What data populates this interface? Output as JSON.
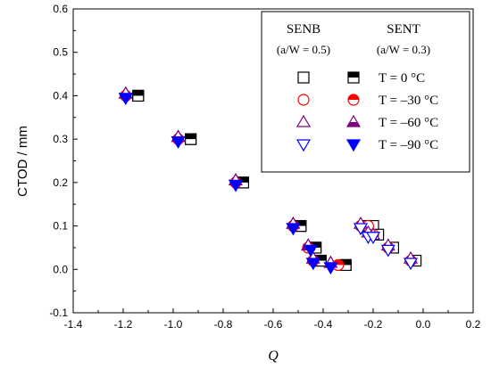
{
  "chart_data": {
    "type": "scatter",
    "xlabel": "Q",
    "ylabel": "CTOD / mm",
    "xlim": [
      -1.4,
      0.2
    ],
    "ylim": [
      -0.1,
      0.6
    ],
    "xticks": [
      "-1.4",
      "-1.2",
      "-1.0",
      "-0.8",
      "-0.6",
      "-0.4",
      "-0.2",
      "0.0",
      "0.2"
    ],
    "yticks": [
      "-0.1",
      "0.0",
      "0.1",
      "0.2",
      "0.3",
      "0.4",
      "0.5",
      "0.6"
    ],
    "legend": {
      "placement": "top-right",
      "groups": [
        {
          "title": "SENB",
          "subtitle": "(a/W = 0.5)"
        },
        {
          "title": "SENT",
          "subtitle": "(a/W = 0.3)"
        }
      ],
      "rows": [
        "T = 0 °C",
        "T = –30 °C",
        "T = –60 °C",
        "T = –90 °C"
      ]
    },
    "colors": {
      "T0": "#000000",
      "T30": "#ff0000",
      "T60": "#800080",
      "T90": "#0000ff"
    },
    "series": [
      {
        "group": "SENB",
        "temp": "T0",
        "marker": "square-open",
        "x": [
          -1.14,
          -0.93,
          -0.72,
          -0.49,
          -0.43,
          -0.41,
          -0.31
        ],
        "y": [
          0.4,
          0.3,
          0.2,
          0.1,
          0.05,
          0.02,
          0.01
        ]
      },
      {
        "group": "SENB",
        "temp": "T30",
        "marker": "circle-open",
        "x": [
          -1.19,
          -0.98,
          -0.75,
          -0.52,
          -0.46,
          -0.44,
          -0.34
        ],
        "y": [
          0.4,
          0.3,
          0.2,
          0.1,
          0.05,
          0.02,
          0.01
        ]
      },
      {
        "group": "SENB",
        "temp": "T60",
        "marker": "triangle-up-open",
        "x": [
          -1.19,
          -0.98,
          -0.75,
          -0.52,
          -0.46,
          -0.44,
          -0.37
        ],
        "y": [
          0.405,
          0.305,
          0.205,
          0.105,
          0.055,
          0.025,
          0.015
        ]
      },
      {
        "group": "SENB",
        "temp": "T90",
        "marker": "triangle-down-open",
        "x": [
          -1.19,
          -0.98,
          -0.75,
          -0.52,
          -0.45,
          -0.44,
          -0.37
        ],
        "y": [
          0.395,
          0.295,
          0.195,
          0.095,
          0.045,
          0.015,
          0.005
        ]
      },
      {
        "group": "SENT",
        "temp": "T0",
        "marker": "square-half",
        "x": [
          -1.14,
          -0.93,
          -0.72,
          -0.49,
          -0.43,
          -0.41,
          -0.31
        ],
        "y": [
          0.4,
          0.3,
          0.2,
          0.1,
          0.05,
          0.02,
          0.01
        ]
      },
      {
        "group": "SENT",
        "temp": "T30",
        "marker": "circle-half",
        "x": [
          -1.19,
          -0.98,
          -0.75,
          -0.52,
          -0.46,
          -0.44,
          -0.34
        ],
        "y": [
          0.4,
          0.3,
          0.2,
          0.1,
          0.05,
          0.02,
          0.01
        ]
      },
      {
        "group": "SENT",
        "temp": "T60",
        "marker": "triangle-up-half",
        "x": [
          -1.19,
          -0.98,
          -0.75,
          -0.52,
          -0.46,
          -0.44,
          -0.37
        ],
        "y": [
          0.405,
          0.305,
          0.205,
          0.105,
          0.055,
          0.025,
          0.015
        ]
      },
      {
        "group": "SENT",
        "temp": "T90",
        "marker": "triangle-down-filled",
        "x": [
          -1.19,
          -0.98,
          -0.75,
          -0.52,
          -0.45,
          -0.44,
          -0.37
        ],
        "y": [
          0.395,
          0.295,
          0.195,
          0.095,
          0.045,
          0.015,
          0.005
        ]
      },
      {
        "group": "SENB-open",
        "temp": "T0",
        "marker": "square-open",
        "x": [
          -0.23,
          -0.2,
          -0.18,
          -0.12,
          -0.03
        ],
        "y": [
          0.1,
          0.1,
          0.08,
          0.05,
          0.02
        ]
      },
      {
        "group": "SENB-open",
        "temp": "T30",
        "marker": "circle-open",
        "x": [
          -0.25,
          -0.22,
          -0.2,
          -0.14,
          -0.05
        ],
        "y": [
          0.1,
          0.1,
          0.08,
          0.05,
          0.02
        ]
      },
      {
        "group": "SENB-open",
        "temp": "T60",
        "marker": "triangle-up-open",
        "x": [
          -0.25,
          -0.22,
          -0.2,
          -0.14,
          -0.05
        ],
        "y": [
          0.105,
          0.085,
          0.08,
          0.055,
          0.025
        ]
      },
      {
        "group": "SENB-open",
        "temp": "T90",
        "marker": "triangle-down-open",
        "x": [
          -0.25,
          -0.22,
          -0.2,
          -0.14,
          -0.05
        ],
        "y": [
          0.095,
          0.075,
          0.075,
          0.045,
          0.015
        ]
      }
    ]
  }
}
